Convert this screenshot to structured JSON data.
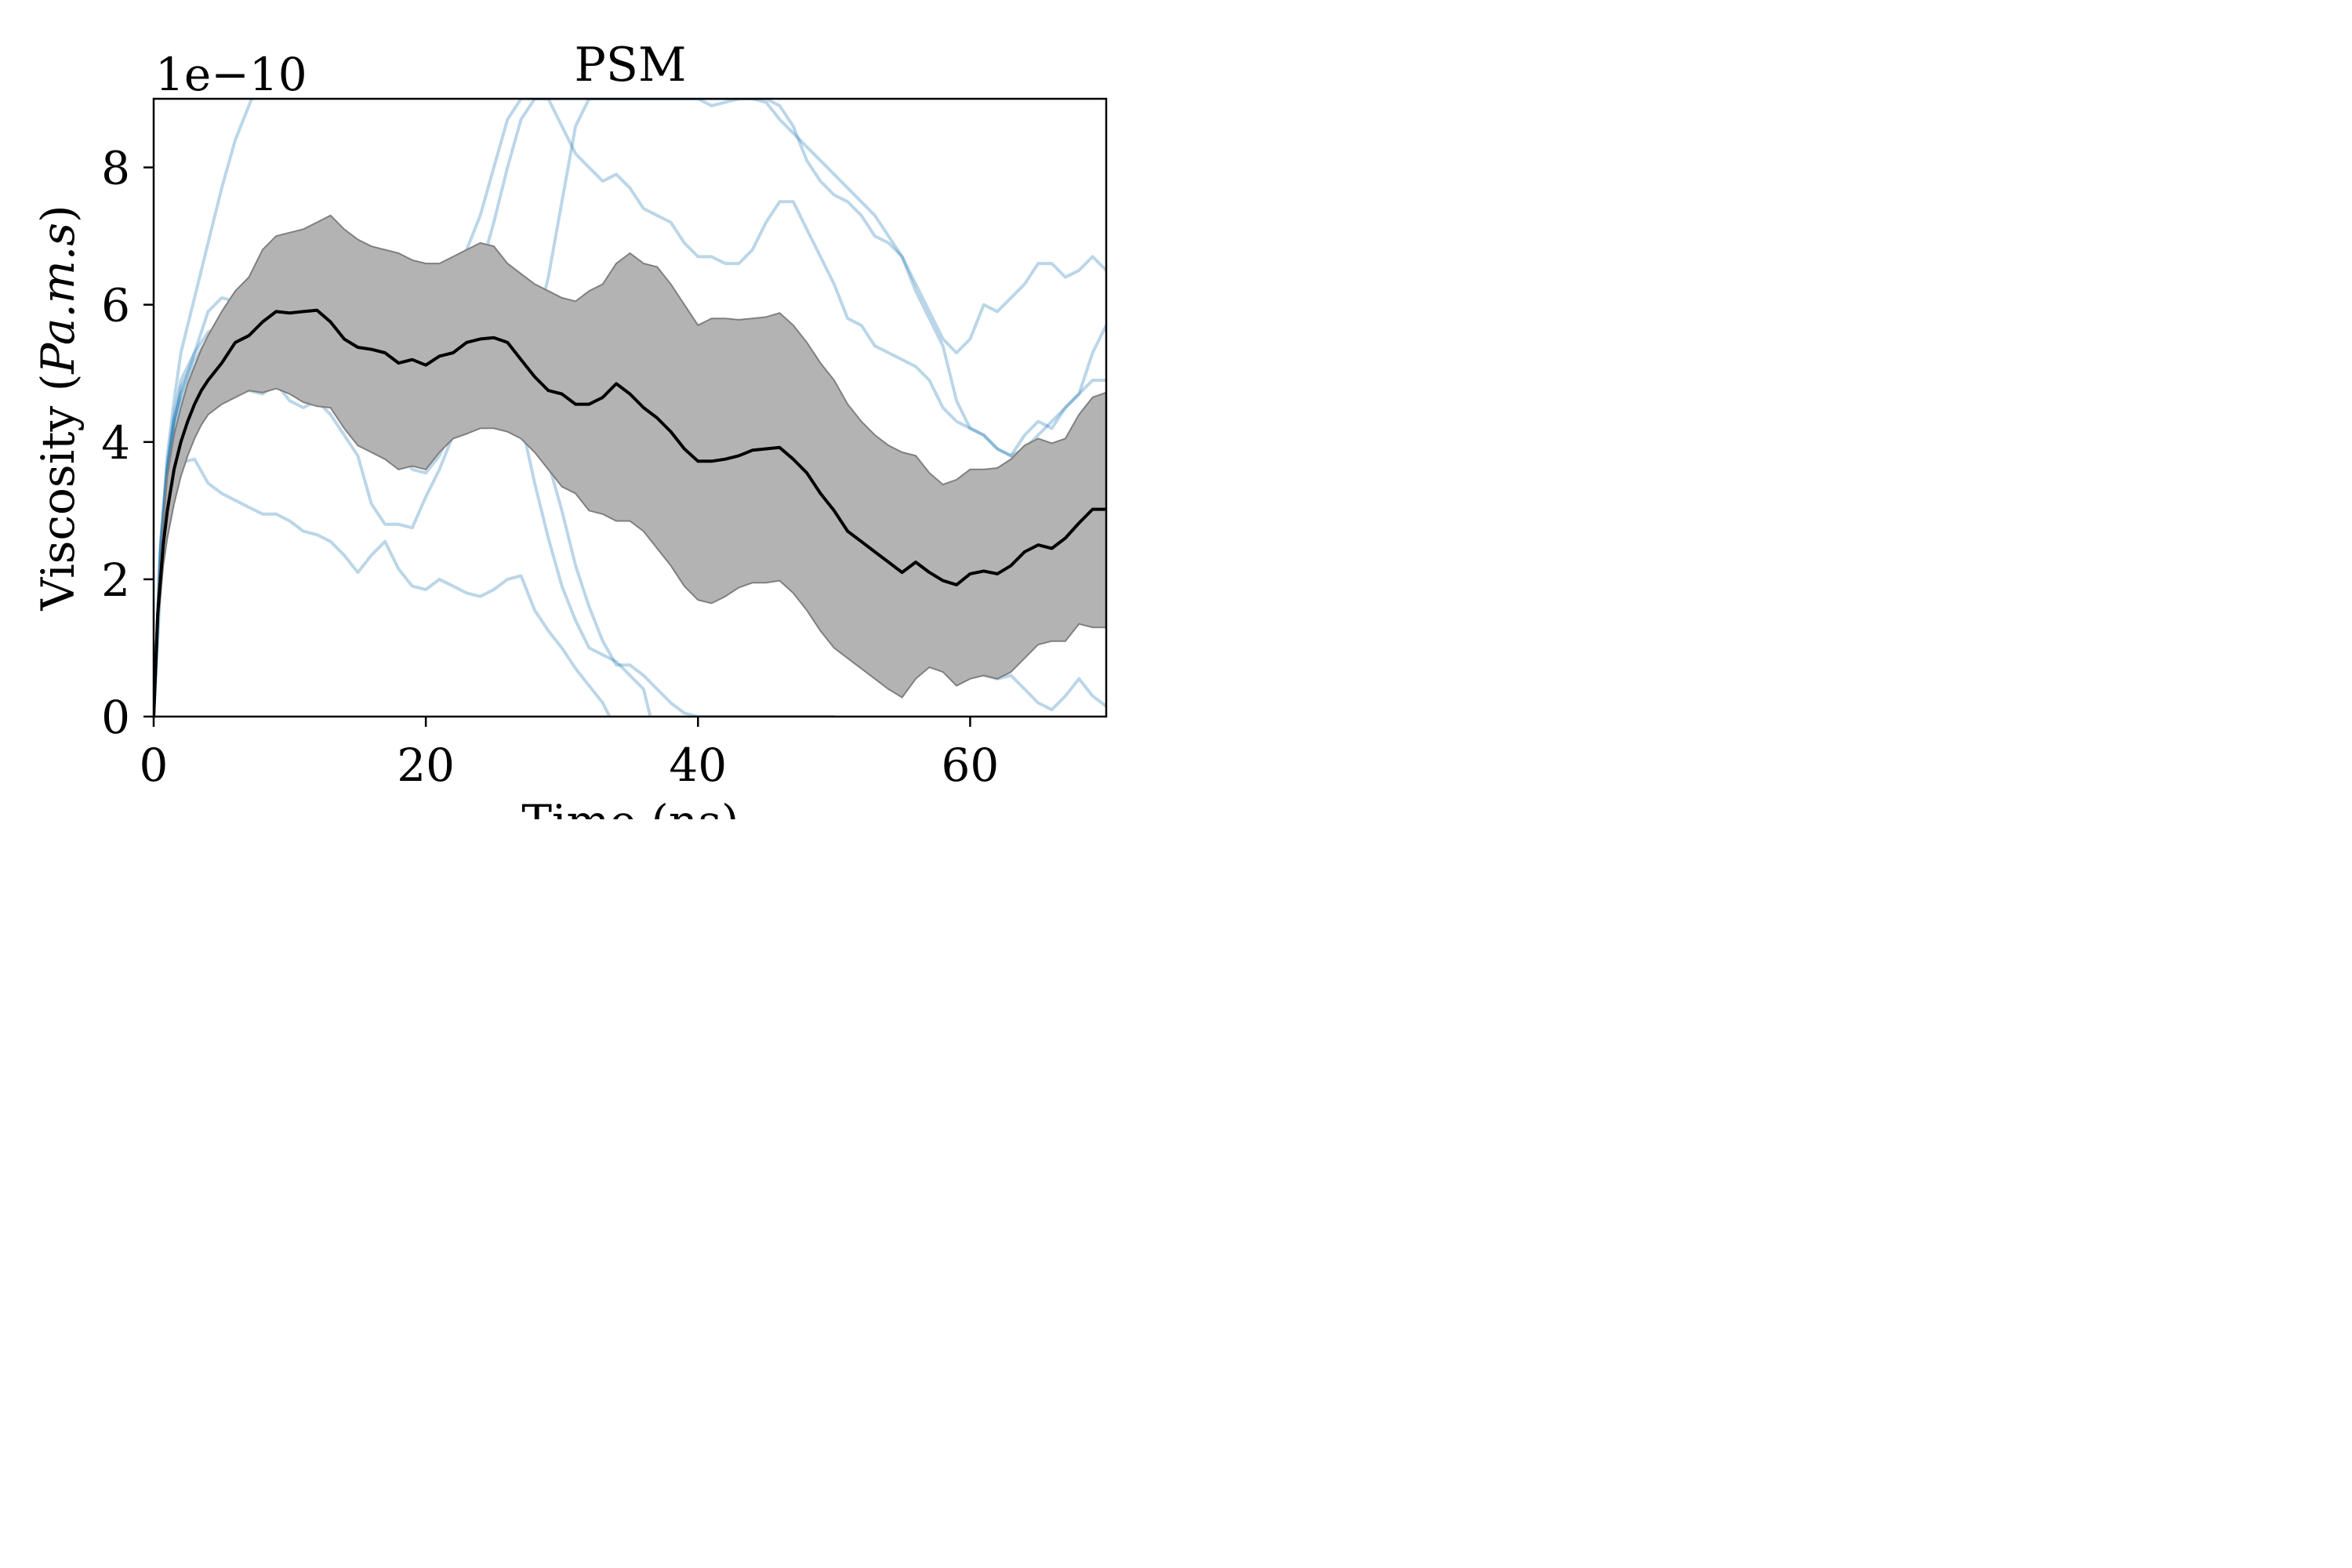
{
  "chart_data": {
    "type": "line",
    "title": "PSM",
    "xlabel": "Time (ns)",
    "ylabel": "Viscosity (Pa.m.s)",
    "ylabel_prefix": "Viscosity (",
    "ylabel_italic": "Pa.m.s",
    "ylabel_suffix": ")",
    "y_offset_label": "1e−10",
    "xlim": [
      0,
      70
    ],
    "ylim": [
      0,
      9
    ],
    "xticks": [
      0,
      20,
      40,
      60
    ],
    "yticks": [
      0,
      2,
      4,
      6,
      8
    ],
    "xtick_labels": [
      "0",
      "20",
      "40",
      "60"
    ],
    "ytick_labels": [
      "0",
      "2",
      "4",
      "6",
      "8"
    ],
    "grid": false,
    "colors": {
      "mean": "#000000",
      "band_fill": "#b3b3b3",
      "band_edge": "#7f7f7f",
      "trajectory": "#1f77b4"
    },
    "mean": {
      "x": [
        0,
        0.3,
        0.7,
        1,
        1.5,
        2,
        2.5,
        3,
        3.5,
        4,
        5,
        6,
        7,
        8,
        9,
        10,
        11,
        12,
        13,
        14,
        15,
        16,
        17,
        18,
        19,
        20,
        21,
        22,
        23,
        24,
        25,
        26,
        27,
        28,
        29,
        30,
        31,
        32,
        33,
        34,
        35,
        36,
        37,
        38,
        39,
        40,
        41,
        42,
        43,
        44,
        45,
        46,
        47,
        48,
        49,
        50,
        51,
        52,
        53,
        54,
        55,
        56,
        57,
        58,
        59,
        60,
        61,
        62,
        63,
        64,
        65,
        66,
        67,
        68,
        69,
        70
      ],
      "y": [
        0.0,
        1.5,
        2.5,
        3.0,
        3.6,
        4.0,
        4.3,
        4.55,
        4.75,
        4.9,
        5.15,
        5.45,
        5.55,
        5.75,
        5.9,
        5.88,
        5.9,
        5.92,
        5.75,
        5.5,
        5.38,
        5.35,
        5.3,
        5.15,
        5.2,
        5.12,
        5.25,
        5.3,
        5.45,
        5.5,
        5.52,
        5.45,
        5.2,
        4.95,
        4.75,
        4.7,
        4.55,
        4.55,
        4.65,
        4.85,
        4.7,
        4.5,
        4.35,
        4.15,
        3.9,
        3.72,
        3.72,
        3.75,
        3.8,
        3.88,
        3.9,
        3.92,
        3.75,
        3.55,
        3.25,
        3.0,
        2.7,
        2.55,
        2.4,
        2.25,
        2.1,
        2.25,
        2.1,
        1.98,
        1.92,
        2.08,
        2.12,
        2.08,
        2.2,
        2.4,
        2.5,
        2.45,
        2.6,
        2.82,
        3.02,
        3.02
      ]
    },
    "band": {
      "x": [
        0,
        0.3,
        0.7,
        1,
        1.5,
        2,
        2.5,
        3,
        3.5,
        4,
        5,
        6,
        7,
        8,
        9,
        10,
        11,
        12,
        13,
        14,
        15,
        16,
        17,
        18,
        19,
        20,
        21,
        22,
        23,
        24,
        25,
        26,
        27,
        28,
        29,
        30,
        31,
        32,
        33,
        34,
        35,
        36,
        37,
        38,
        39,
        40,
        41,
        42,
        43,
        44,
        45,
        46,
        47,
        48,
        49,
        50,
        51,
        52,
        53,
        54,
        55,
        56,
        57,
        58,
        59,
        60,
        61,
        62,
        63,
        64,
        65,
        66,
        67,
        68,
        69,
        70
      ],
      "upper": [
        0.0,
        1.7,
        2.8,
        3.5,
        4.1,
        4.5,
        4.85,
        5.1,
        5.35,
        5.55,
        5.9,
        6.2,
        6.4,
        6.8,
        7.0,
        7.05,
        7.1,
        7.2,
        7.3,
        7.1,
        6.95,
        6.85,
        6.8,
        6.75,
        6.65,
        6.6,
        6.6,
        6.7,
        6.8,
        6.9,
        6.85,
        6.6,
        6.45,
        6.3,
        6.2,
        6.1,
        6.05,
        6.2,
        6.3,
        6.6,
        6.75,
        6.6,
        6.55,
        6.3,
        6.0,
        5.7,
        5.8,
        5.8,
        5.78,
        5.8,
        5.82,
        5.88,
        5.7,
        5.45,
        5.15,
        4.9,
        4.55,
        4.3,
        4.1,
        3.95,
        3.85,
        3.8,
        3.55,
        3.38,
        3.45,
        3.6,
        3.6,
        3.62,
        3.75,
        3.95,
        4.05,
        3.98,
        4.05,
        4.4,
        4.65,
        4.72
      ]
    },
    "band_lower": [
      0.0,
      1.3,
      2.2,
      2.6,
      3.1,
      3.5,
      3.8,
      4.05,
      4.25,
      4.4,
      4.55,
      4.65,
      4.75,
      4.72,
      4.78,
      4.7,
      4.58,
      4.52,
      4.5,
      4.2,
      3.95,
      3.85,
      3.75,
      3.6,
      3.65,
      3.6,
      3.85,
      4.05,
      4.12,
      4.2,
      4.2,
      4.15,
      4.05,
      3.85,
      3.6,
      3.35,
      3.25,
      3.0,
      2.95,
      2.85,
      2.85,
      2.7,
      2.45,
      2.2,
      1.9,
      1.7,
      1.65,
      1.75,
      1.88,
      1.95,
      1.95,
      1.98,
      1.8,
      1.55,
      1.25,
      1.0,
      0.85,
      0.7,
      0.55,
      0.4,
      0.28,
      0.55,
      0.72,
      0.65,
      0.45,
      0.55,
      0.6,
      0.55,
      0.65,
      0.85,
      1.05,
      1.1,
      1.1,
      1.35,
      1.3,
      1.3
    ],
    "trajectories": [
      {
        "x": [
          0,
          0.5,
          1,
          1.5,
          2,
          3,
          4,
          5,
          6,
          7,
          7.2
        ],
        "y": [
          0.0,
          2.5,
          3.8,
          4.6,
          5.3,
          6.1,
          6.9,
          7.7,
          8.4,
          8.9,
          9.0
        ]
      },
      {
        "x": [
          0,
          0.5,
          1,
          1.5,
          2,
          3,
          4,
          5,
          6,
          7,
          8,
          9,
          10,
          11,
          12,
          13,
          14,
          15,
          16,
          17,
          18,
          19,
          20,
          21,
          22,
          23,
          24,
          25,
          26,
          27,
          28,
          29,
          30,
          31,
          32,
          33,
          34,
          35,
          36,
          37,
          38,
          39,
          40,
          41,
          42,
          43,
          44,
          45,
          46,
          47,
          48,
          49,
          50
        ],
        "y": [
          0.0,
          2.4,
          3.6,
          4.3,
          4.7,
          5.3,
          5.9,
          6.1,
          6.05,
          5.9,
          6.0,
          6.1,
          5.7,
          5.6,
          5.7,
          5.3,
          5.1,
          4.6,
          4.4,
          4.2,
          4.0,
          3.6,
          3.55,
          3.8,
          4.25,
          4.8,
          5.3,
          6.0,
          5.7,
          5.3,
          4.6,
          3.7,
          3.0,
          2.2,
          1.6,
          1.1,
          0.75,
          0.75,
          0.6,
          0.4,
          0.2,
          0.05,
          0.0,
          0.0,
          0.0,
          0.0,
          0.0,
          0.0,
          0.0,
          0.0,
          0.0,
          0.0,
          0.0
        ]
      },
      {
        "x": [
          0,
          0.5,
          1,
          1.5,
          2,
          3,
          4,
          5,
          6,
          7,
          8,
          9,
          10,
          11,
          12,
          13,
          14,
          15,
          16,
          17,
          18,
          19,
          20,
          21,
          22,
          23,
          24,
          25,
          26,
          27,
          28,
          29,
          30,
          31,
          32,
          33,
          33.5
        ],
        "y": [
          0.0,
          1.9,
          2.9,
          3.4,
          3.7,
          3.75,
          3.4,
          3.25,
          3.15,
          3.05,
          2.95,
          2.95,
          2.85,
          2.7,
          2.65,
          2.55,
          2.35,
          2.1,
          2.35,
          2.55,
          2.15,
          1.9,
          1.85,
          2.0,
          1.9,
          1.8,
          1.75,
          1.85,
          2.0,
          2.05,
          1.55,
          1.25,
          1.0,
          0.7,
          0.45,
          0.2,
          0.0
        ]
      },
      {
        "x": [
          0,
          0.5,
          1,
          1.5,
          2,
          3,
          4,
          5,
          6,
          7,
          8,
          9,
          10,
          11,
          12,
          13,
          14,
          15,
          16,
          17,
          18,
          19,
          20,
          21,
          22,
          23,
          24,
          25,
          26,
          27,
          28,
          29,
          30,
          31,
          32,
          33,
          34,
          35,
          36,
          36.5
        ],
        "y": [
          0.0,
          2.2,
          3.3,
          3.9,
          4.2,
          4.5,
          4.6,
          4.6,
          4.7,
          4.75,
          4.7,
          4.85,
          4.6,
          4.5,
          4.6,
          4.4,
          4.1,
          3.8,
          3.1,
          2.8,
          2.8,
          2.75,
          3.2,
          3.6,
          4.1,
          4.6,
          4.9,
          5.2,
          4.7,
          4.3,
          3.4,
          2.6,
          1.9,
          1.4,
          1.0,
          0.9,
          0.8,
          0.6,
          0.4,
          0.0
        ]
      },
      {
        "x": [
          0,
          0.5,
          1,
          1.5,
          2,
          3,
          4,
          5,
          6,
          7,
          8,
          9,
          10,
          11,
          12,
          13,
          14,
          15,
          16,
          17,
          18,
          19,
          20,
          21,
          22,
          23,
          24,
          25,
          26,
          27,
          28,
          29,
          30,
          31,
          32,
          33,
          34,
          35,
          36,
          37,
          38,
          39,
          40,
          41,
          42,
          43,
          44,
          45,
          46,
          47,
          48,
          49,
          50,
          51,
          52,
          53,
          54,
          55,
          56,
          57,
          58,
          59,
          60,
          61,
          62,
          63,
          64,
          65,
          66,
          67,
          68,
          69,
          70
        ],
        "y": [
          0.0,
          2.3,
          3.5,
          4.2,
          4.6,
          5.0,
          5.3,
          5.5,
          5.6,
          5.65,
          5.8,
          5.95,
          6.05,
          6.3,
          6.5,
          6.4,
          6.1,
          5.9,
          5.8,
          5.85,
          5.8,
          5.5,
          5.3,
          5.3,
          5.4,
          5.2,
          5.1,
          5.15,
          5.3,
          5.55,
          5.5,
          5.55,
          5.7,
          5.5,
          5.3,
          5.5,
          5.8,
          6.0,
          6.2,
          6.3,
          5.5,
          4.6,
          3.9,
          3.2,
          2.6,
          2.3,
          2.2,
          2.5,
          3.0,
          3.3,
          3.2,
          3.0,
          2.8,
          2.5,
          2.3,
          2.2,
          2.1,
          2.0,
          1.6,
          1.3,
          1.0,
          0.8,
          0.7,
          0.6,
          0.55,
          0.6,
          0.4,
          0.2,
          0.1,
          0.3,
          0.55,
          0.3,
          0.15
        ]
      },
      {
        "x": [
          0,
          0.5,
          1,
          1.5,
          2,
          3,
          4,
          5,
          6,
          7,
          8,
          9,
          10,
          11,
          12,
          13,
          14,
          15,
          16,
          17,
          18,
          19,
          20,
          21,
          22,
          23,
          24,
          25,
          26,
          27,
          28,
          29,
          30,
          31,
          32,
          33,
          34,
          35,
          36,
          37,
          38,
          39,
          40,
          41,
          42,
          43,
          44,
          45,
          46,
          47,
          48,
          49,
          50,
          51,
          52,
          53,
          54,
          55,
          56,
          57,
          58,
          59,
          60,
          61,
          62,
          63,
          64,
          65,
          66,
          67,
          68,
          69,
          70
        ],
        "y": [
          0.0,
          2.4,
          3.6,
          4.3,
          4.7,
          5.1,
          5.4,
          5.5,
          5.45,
          5.5,
          5.7,
          5.8,
          5.6,
          5.5,
          5.6,
          5.2,
          4.8,
          5.0,
          5.1,
          5.3,
          5.5,
          5.4,
          5.3,
          5.35,
          5.0,
          4.9,
          5.0,
          5.1,
          5.3,
          5.4,
          5.6,
          6.4,
          7.5,
          8.6,
          9.0,
          9.0,
          9.0,
          9.0,
          9.0,
          9.0,
          9.0,
          9.0,
          9.0,
          9.0,
          9.0,
          9.0,
          9.0,
          9.0,
          8.9,
          8.6,
          8.1,
          7.8,
          7.6,
          7.5,
          7.3,
          7.0,
          6.9,
          6.7,
          6.2,
          5.8,
          5.4,
          4.6,
          4.2,
          4.1,
          3.9,
          3.8,
          4.1,
          4.3,
          4.2,
          4.5,
          4.7,
          4.9,
          4.9
        ]
      },
      {
        "x": [
          0,
          0.5,
          1,
          1.5,
          2,
          3,
          4,
          5,
          6,
          7,
          8,
          9,
          10,
          11,
          12,
          13,
          14,
          15,
          16,
          17,
          18,
          19,
          20,
          21,
          22,
          23,
          24,
          25,
          26,
          27,
          28,
          29,
          30,
          31,
          32,
          33,
          34,
          35,
          36,
          37,
          38,
          39,
          40,
          41,
          42,
          43,
          44,
          45,
          46,
          47,
          48,
          49,
          50,
          51,
          52,
          53,
          54,
          55,
          56,
          57,
          58,
          59,
          60,
          61,
          62,
          63,
          64,
          65,
          66,
          67,
          68,
          69,
          70
        ],
        "y": [
          0.0,
          2.5,
          3.7,
          4.4,
          4.9,
          5.3,
          5.6,
          5.7,
          5.75,
          5.8,
          5.85,
          5.9,
          5.7,
          5.8,
          5.6,
          5.6,
          5.4,
          5.5,
          5.7,
          5.4,
          5.2,
          5.3,
          5.5,
          5.7,
          5.8,
          6.1,
          6.5,
          7.2,
          8.0,
          8.7,
          9.0,
          9.0,
          8.6,
          8.2,
          8.0,
          7.8,
          7.9,
          7.7,
          7.4,
          7.3,
          7.2,
          6.9,
          6.7,
          6.7,
          6.6,
          6.6,
          6.8,
          7.2,
          7.5,
          7.5,
          7.1,
          6.7,
          6.3,
          5.8,
          5.7,
          5.4,
          5.3,
          5.2,
          5.1,
          4.9,
          4.5,
          4.3,
          4.2,
          4.1,
          3.9,
          3.8,
          3.9,
          4.1,
          4.3,
          4.5,
          4.7,
          5.3,
          5.7
        ]
      },
      {
        "x": [
          0,
          0.5,
          1,
          1.5,
          2,
          3,
          4,
          5,
          6,
          7,
          8,
          9,
          10,
          11,
          12,
          13,
          14,
          15,
          16,
          17,
          18,
          19,
          20,
          21,
          22,
          23,
          24,
          25,
          26,
          27,
          28,
          29,
          30,
          31,
          32,
          33,
          34,
          35,
          36,
          37,
          38,
          39,
          40,
          41,
          42,
          43,
          44,
          45,
          46,
          47,
          48,
          49,
          50,
          51,
          52,
          53,
          54,
          55,
          56,
          57,
          58,
          59,
          60,
          61,
          62,
          63,
          64,
          65,
          66,
          67,
          68,
          69,
          70
        ],
        "y": [
          0.0,
          2.4,
          3.6,
          4.3,
          4.8,
          5.2,
          5.5,
          5.6,
          5.7,
          5.9,
          6.1,
          6.2,
          6.0,
          5.8,
          5.7,
          5.9,
          6.0,
          6.1,
          6.0,
          5.8,
          5.7,
          5.6,
          5.7,
          6.0,
          6.4,
          6.8,
          7.3,
          8.0,
          8.7,
          9.0,
          9.0,
          9.0,
          9.0,
          9.0,
          9.0,
          9.0,
          9.0,
          9.0,
          9.0,
          9.0,
          9.0,
          9.0,
          9.0,
          8.9,
          8.95,
          9.0,
          9.0,
          8.95,
          8.7,
          8.5,
          8.3,
          8.1,
          7.9,
          7.7,
          7.5,
          7.3,
          7.0,
          6.7,
          6.3,
          5.9,
          5.5,
          5.3,
          5.5,
          6.0,
          5.9,
          6.1,
          6.3,
          6.6,
          6.6,
          6.4,
          6.5,
          6.7,
          6.5
        ]
      }
    ]
  }
}
